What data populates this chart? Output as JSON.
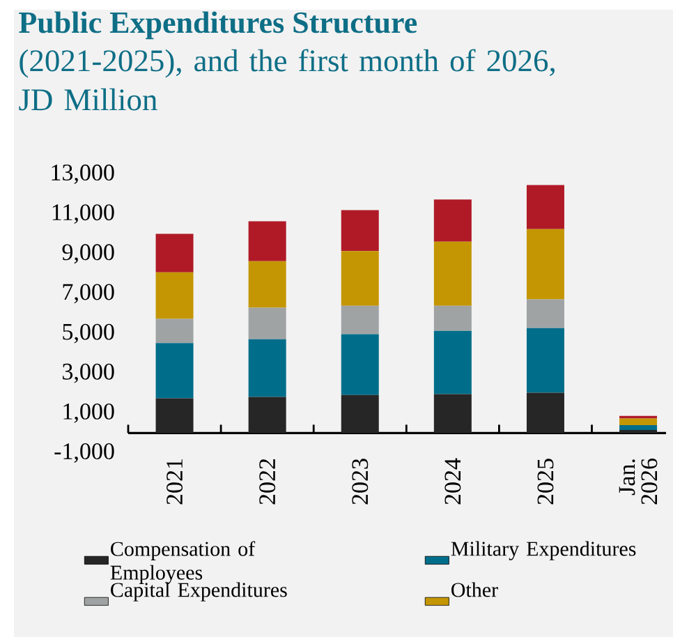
{
  "chart_data": {
    "type": "bar",
    "stacked": true,
    "title": "Public Expenditures Structure",
    "subtitle": "(2021-2025), and the first month of 2026, JD Million",
    "categories": [
      "2021",
      "2022",
      "2023",
      "2024",
      "2025",
      "Jan. 2026"
    ],
    "series": [
      {
        "name": "Compensation of Employees",
        "color": "#262626",
        "values": [
          1750,
          1820,
          1910,
          1960,
          2030,
          150
        ]
      },
      {
        "name": "Military Expenditures",
        "color": "#006e8a",
        "values": [
          2770,
          2890,
          3060,
          3170,
          3240,
          250
        ]
      },
      {
        "name": "Capital Expenditures",
        "color": "#a0a3a4",
        "values": [
          1220,
          1590,
          1420,
          1260,
          1450,
          null
        ]
      },
      {
        "name": "Other",
        "color": "#c49603",
        "values": [
          2330,
          2330,
          2750,
          3220,
          3520,
          330
        ]
      },
      {
        "color": "#b01a27",
        "values": [
          1940,
          2010,
          2060,
          2120,
          2220,
          130
        ]
      }
    ],
    "ylim": [
      -1000,
      13000
    ],
    "yticks": [
      {
        "value": -1000,
        "label": "-1,000"
      },
      {
        "value": 1000,
        "label": "1,000"
      },
      {
        "value": 3000,
        "label": "3,000"
      },
      {
        "value": 5000,
        "label": "5,000"
      },
      {
        "value": 7000,
        "label": "7,000"
      },
      {
        "value": 9000,
        "label": "9,000"
      },
      {
        "value": 11000,
        "label": "11,000"
      },
      {
        "value": 13000,
        "label": "13,000"
      }
    ],
    "grid": false,
    "legend": "bottom"
  }
}
